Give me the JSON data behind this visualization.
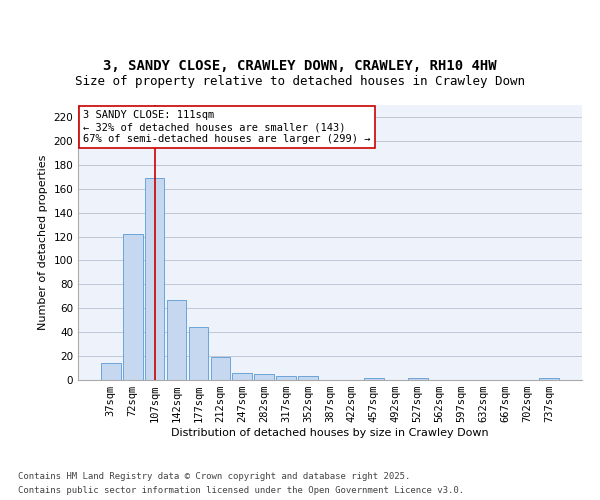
{
  "title1": "3, SANDY CLOSE, CRAWLEY DOWN, CRAWLEY, RH10 4HW",
  "title2": "Size of property relative to detached houses in Crawley Down",
  "xlabel": "Distribution of detached houses by size in Crawley Down",
  "ylabel": "Number of detached properties",
  "bar_labels": [
    "37sqm",
    "72sqm",
    "107sqm",
    "142sqm",
    "177sqm",
    "212sqm",
    "247sqm",
    "282sqm",
    "317sqm",
    "352sqm",
    "387sqm",
    "422sqm",
    "457sqm",
    "492sqm",
    "527sqm",
    "562sqm",
    "597sqm",
    "632sqm",
    "667sqm",
    "702sqm",
    "737sqm"
  ],
  "bar_values": [
    14,
    122,
    169,
    67,
    44,
    19,
    6,
    5,
    3,
    3,
    0,
    0,
    2,
    0,
    2,
    0,
    0,
    0,
    0,
    0,
    2
  ],
  "bar_color": "#c5d8f0",
  "bar_edge_color": "#5b9bd5",
  "vline_x": 2,
  "vline_color": "#cc0000",
  "annotation_text": "3 SANDY CLOSE: 111sqm\n← 32% of detached houses are smaller (143)\n67% of semi-detached houses are larger (299) →",
  "annotation_box_color": "#ffffff",
  "annotation_box_edge": "#cc0000",
  "ylim": [
    0,
    230
  ],
  "yticks": [
    0,
    20,
    40,
    60,
    80,
    100,
    120,
    140,
    160,
    180,
    200,
    220
  ],
  "grid_color": "#c0c8d8",
  "background_color": "#eef2fa",
  "footer_line1": "Contains HM Land Registry data © Crown copyright and database right 2025.",
  "footer_line2": "Contains public sector information licensed under the Open Government Licence v3.0.",
  "title1_fontsize": 10,
  "title2_fontsize": 9,
  "axis_label_fontsize": 8,
  "tick_fontsize": 7.5,
  "annotation_fontsize": 7.5,
  "footer_fontsize": 6.5
}
